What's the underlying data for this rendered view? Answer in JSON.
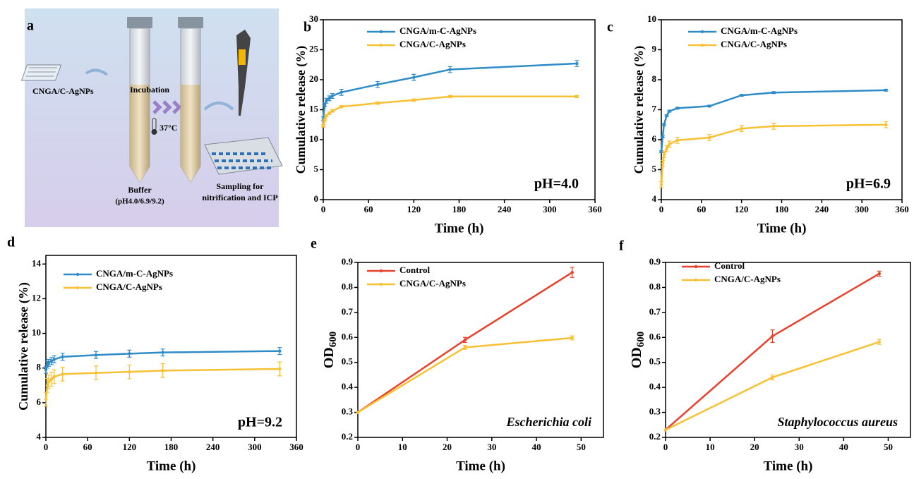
{
  "diagram": {
    "panel": "a",
    "sample": "CNGA/C-AgNPs",
    "step": "Incubation",
    "temperature": "37°C",
    "buffer": "Buffer",
    "buffer_ph": "(pH4.0/6.9/9.2)",
    "sampling_1": "Sampling for",
    "sampling_2": "nitrification and ICP"
  },
  "chart_data": [
    {
      "type": "line",
      "panel": "b",
      "xlabel": "Time (h)",
      "ylabel": "Cumulative release (%)",
      "annotation": "pH=4.0",
      "x": [
        0,
        2,
        4,
        8,
        12,
        24,
        72,
        120,
        168,
        336
      ],
      "series": [
        {
          "name": "CNGA/m-C-AgNPs",
          "color": "#2e8bc6",
          "values": [
            13.5,
            15.8,
            16.5,
            16.9,
            17.3,
            17.9,
            19.2,
            20.4,
            21.7,
            22.7
          ],
          "errors": [
            0.3,
            0.3,
            0.4,
            0.4,
            0.4,
            0.5,
            0.5,
            0.5,
            0.5,
            0.5
          ]
        },
        {
          "name": "CNGA/C-AgNPs",
          "color": "#f8c033",
          "values": [
            12.3,
            13.3,
            14.0,
            14.4,
            14.8,
            15.5,
            16.1,
            16.6,
            17.2,
            17.2
          ],
          "errors": [
            0.2,
            0.2,
            0.2,
            0.2,
            0.2,
            0.2,
            0.2,
            0.2,
            0.2,
            0.2
          ]
        }
      ],
      "xlim": [
        0,
        360
      ],
      "xticks": [
        0,
        60,
        120,
        180,
        240,
        300,
        360
      ],
      "ylim": [
        0,
        30
      ],
      "yticks": [
        0,
        5,
        10,
        15,
        20,
        25,
        30
      ]
    },
    {
      "type": "line",
      "panel": "c",
      "xlabel": "Time (h)",
      "ylabel": "Cumulative release (%)",
      "annotation": "pH=6.9",
      "x": [
        0,
        2,
        4,
        8,
        12,
        24,
        72,
        120,
        168,
        336
      ],
      "series": [
        {
          "name": "CNGA/m-C-AgNPs",
          "color": "#2e8bc6",
          "values": [
            5.6,
            6.1,
            6.5,
            6.8,
            6.95,
            7.05,
            7.12,
            7.48,
            7.57,
            7.65
          ],
          "errors": [
            0.03,
            0.03,
            0.03,
            0.03,
            0.03,
            0.03,
            0.03,
            0.03,
            0.03,
            0.03
          ]
        },
        {
          "name": "CNGA/C-AgNPs",
          "color": "#f8c033",
          "values": [
            4.5,
            5.2,
            5.5,
            5.7,
            5.85,
            5.98,
            6.07,
            6.37,
            6.45,
            6.5
          ],
          "errors": [
            0.1,
            0.1,
            0.1,
            0.1,
            0.1,
            0.1,
            0.1,
            0.1,
            0.1,
            0.1
          ]
        }
      ],
      "xlim": [
        0,
        360
      ],
      "xticks": [
        0,
        60,
        120,
        180,
        240,
        300,
        360
      ],
      "ylim": [
        4,
        10
      ],
      "yticks": [
        4,
        5,
        6,
        7,
        8,
        9,
        10
      ]
    },
    {
      "type": "line",
      "panel": "d",
      "xlabel": "Time (h)",
      "ylabel": "Cumulative release (%)",
      "annotation": "pH=9.2",
      "x": [
        0,
        2,
        4,
        8,
        12,
        24,
        72,
        120,
        168,
        336
      ],
      "series": [
        {
          "name": "CNGA/m-C-AgNPs",
          "color": "#2e8bc6",
          "values": [
            7.9,
            8.2,
            8.3,
            8.4,
            8.5,
            8.65,
            8.75,
            8.83,
            8.9,
            8.98
          ],
          "errors": [
            0.2,
            0.2,
            0.2,
            0.2,
            0.2,
            0.2,
            0.2,
            0.2,
            0.2,
            0.2
          ]
        },
        {
          "name": "CNGA/C-AgNPs",
          "color": "#f8c033",
          "values": [
            6.2,
            7.0,
            7.2,
            7.35,
            7.5,
            7.65,
            7.72,
            7.78,
            7.85,
            7.95
          ],
          "errors": [
            0.4,
            0.4,
            0.4,
            0.4,
            0.4,
            0.4,
            0.4,
            0.4,
            0.4,
            0.4
          ]
        }
      ],
      "xlim": [
        0,
        360
      ],
      "xticks": [
        0,
        60,
        120,
        180,
        240,
        300,
        360
      ],
      "ylim": [
        4,
        14.5
      ],
      "yticks": [
        4,
        6,
        8,
        10,
        12,
        14
      ]
    },
    {
      "type": "line",
      "panel": "e",
      "xlabel": "Time (h)",
      "ylabel": "OD",
      "ylabel_sub": "600",
      "annotation": "Escherichia coli",
      "annotation_italic": true,
      "x": [
        0,
        24,
        48
      ],
      "series": [
        {
          "name": "Control",
          "color": "#e8412c",
          "values": [
            0.3,
            0.59,
            0.86
          ],
          "errors": [
            null,
            0.01,
            0.02
          ]
        },
        {
          "name": "CNGA/C-AgNPs",
          "color": "#f8c033",
          "values": [
            0.3,
            0.56,
            0.598
          ],
          "errors": [
            null,
            0.008,
            0.008
          ]
        }
      ],
      "xlim": [
        0,
        55
      ],
      "xticks": [
        0,
        10,
        20,
        30,
        40,
        50
      ],
      "ylim": [
        0.2,
        0.9
      ],
      "yticks": [
        0.2,
        0.3,
        0.4,
        0.5,
        0.6,
        0.7,
        0.8,
        0.9
      ]
    },
    {
      "type": "line",
      "panel": "f",
      "xlabel": "Time (h)",
      "ylabel": "OD",
      "ylabel_sub": "600",
      "annotation": "Staphylococcus aureus",
      "annotation_italic": true,
      "x": [
        0,
        24,
        48
      ],
      "series": [
        {
          "name": "Control",
          "color": "#e8412c",
          "values": [
            0.23,
            0.605,
            0.855
          ],
          "errors": [
            null,
            0.025,
            0.01
          ]
        },
        {
          "name": "CNGA/C-AgNPs",
          "color": "#f8c033",
          "values": [
            0.23,
            0.44,
            0.582
          ],
          "errors": [
            null,
            0.01,
            0.01
          ]
        }
      ],
      "xlim": [
        0,
        55
      ],
      "xticks": [
        0,
        10,
        20,
        30,
        40,
        50
      ],
      "ylim": [
        0.2,
        0.9
      ],
      "yticks": [
        0.2,
        0.3,
        0.4,
        0.5,
        0.6,
        0.7,
        0.8,
        0.9
      ]
    }
  ]
}
